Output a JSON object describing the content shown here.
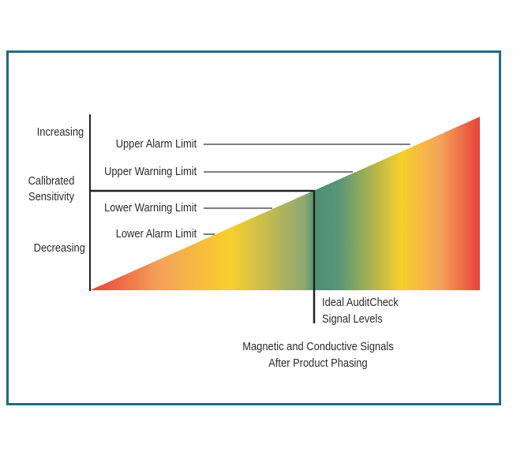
{
  "y_axis": {
    "top": "Increasing",
    "middle": [
      "Calibrated",
      "Sensitivity"
    ],
    "bottom": "Decreasing"
  },
  "limits": {
    "upper_alarm": "Upper Alarm Limit",
    "upper_warning": "Upper Warning Limit",
    "lower_warning": "Lower Warning Limit",
    "lower_alarm": "Lower Alarm Limit"
  },
  "ideal_label": [
    "Ideal AuditCheck",
    "Signal Levels"
  ],
  "x_caption": [
    "Magnetic and Conductive Signals",
    "After Product Phasing"
  ],
  "colors": {
    "border": "#1f6b84",
    "red": "#e8423a",
    "orange": "#f4a259",
    "yellow": "#f7d02b",
    "green": "#4e8f74"
  }
}
